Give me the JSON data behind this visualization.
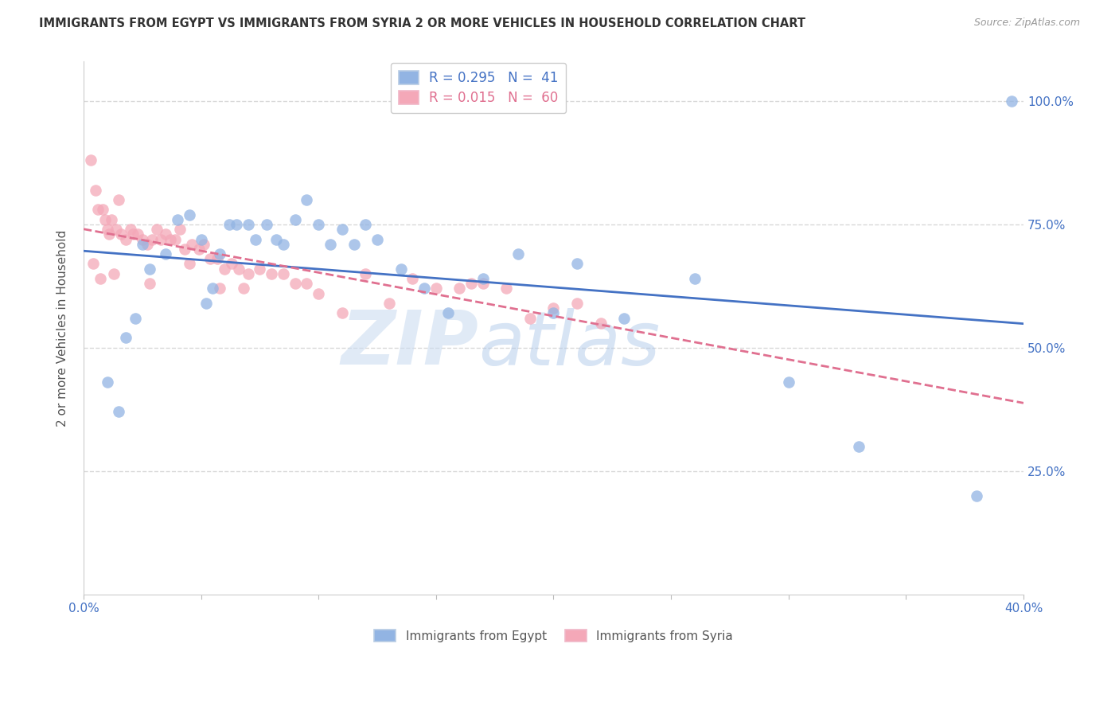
{
  "title": "IMMIGRANTS FROM EGYPT VS IMMIGRANTS FROM SYRIA 2 OR MORE VEHICLES IN HOUSEHOLD CORRELATION CHART",
  "source": "Source: ZipAtlas.com",
  "ylabel": "2 or more Vehicles in Household",
  "xmin": 0.0,
  "xmax": 40.0,
  "ymin": 0.0,
  "ymax": 108,
  "legend1_R": "0.295",
  "legend1_N": "41",
  "legend2_R": "0.015",
  "legend2_N": "60",
  "egypt_color": "#92b4e3",
  "syria_color": "#f4a8b8",
  "egypt_line_color": "#4472c4",
  "syria_line_color": "#e07090",
  "egypt_points_x": [
    1.0,
    1.5,
    2.2,
    2.8,
    3.5,
    4.0,
    4.5,
    5.0,
    5.5,
    5.8,
    6.2,
    6.5,
    7.0,
    7.3,
    7.8,
    8.2,
    8.5,
    9.0,
    9.5,
    10.0,
    10.5,
    11.0,
    11.5,
    12.0,
    12.5,
    13.5,
    14.5,
    15.5,
    17.0,
    18.5,
    20.0,
    21.0,
    23.0,
    26.0,
    30.0,
    33.0,
    38.0,
    1.8,
    2.5,
    5.2,
    39.5
  ],
  "egypt_points_y": [
    43,
    37,
    56,
    66,
    69,
    76,
    77,
    72,
    62,
    69,
    75,
    75,
    75,
    72,
    75,
    72,
    71,
    76,
    80,
    75,
    71,
    74,
    71,
    75,
    72,
    66,
    62,
    57,
    64,
    69,
    57,
    67,
    56,
    64,
    43,
    30,
    20,
    52,
    71,
    59,
    100
  ],
  "syria_points_x": [
    0.3,
    0.5,
    0.6,
    0.8,
    0.9,
    1.0,
    1.1,
    1.2,
    1.4,
    1.5,
    1.6,
    1.8,
    2.0,
    2.1,
    2.3,
    2.5,
    2.7,
    2.9,
    3.1,
    3.3,
    3.5,
    3.7,
    3.9,
    4.1,
    4.3,
    4.6,
    4.9,
    5.1,
    5.4,
    5.7,
    6.0,
    6.3,
    6.6,
    7.0,
    7.5,
    8.0,
    8.5,
    9.0,
    9.5,
    10.0,
    11.0,
    12.0,
    13.0,
    14.0,
    15.0,
    16.0,
    17.0,
    18.0,
    19.0,
    20.0,
    21.0,
    22.0,
    5.8,
    0.7,
    1.3,
    2.8,
    4.5,
    16.5,
    0.4,
    6.8
  ],
  "syria_points_y": [
    88,
    82,
    78,
    78,
    76,
    74,
    73,
    76,
    74,
    80,
    73,
    72,
    74,
    73,
    73,
    72,
    71,
    72,
    74,
    72,
    73,
    72,
    72,
    74,
    70,
    71,
    70,
    71,
    68,
    68,
    66,
    67,
    66,
    65,
    66,
    65,
    65,
    63,
    63,
    61,
    57,
    65,
    59,
    64,
    62,
    62,
    63,
    62,
    56,
    58,
    59,
    55,
    62,
    64,
    65,
    63,
    67,
    63,
    67,
    62
  ],
  "watermark_zip": "ZIP",
  "watermark_atlas": "atlas",
  "background_color": "#ffffff",
  "grid_color": "#d8d8d8",
  "ytick_vals": [
    0,
    25,
    50,
    75,
    100
  ],
  "ytick_labels": [
    "",
    "25.0%",
    "50.0%",
    "75.0%",
    "100.0%"
  ]
}
